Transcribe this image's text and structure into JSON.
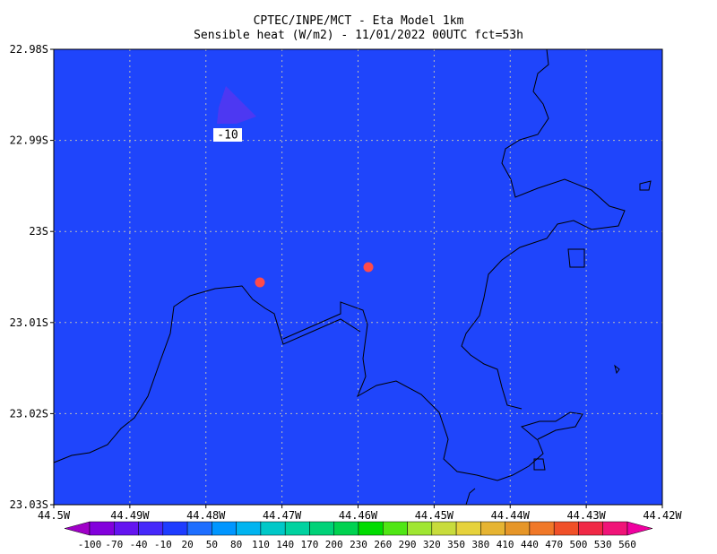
{
  "header": {
    "title": "CPTEC/INPE/MCT -  Eta Model 1km",
    "subtitle": "Sensible heat (W/m2) - 11/01/2022 00UTC fct=53h"
  },
  "map": {
    "lat_ticks": [
      "22.98S",
      "22.99S",
      "23S",
      "23.01S",
      "23.02S",
      "23.03S"
    ],
    "lon_ticks": [
      "44.5W",
      "44.49W",
      "44.48W",
      "44.47W",
      "44.46W",
      "44.45W",
      "44.44W",
      "44.43W",
      "44.42W"
    ],
    "contour_label": "-10"
  },
  "colorbar": {
    "labels": [
      -100,
      -70,
      -40,
      -10,
      20,
      50,
      80,
      110,
      140,
      170,
      200,
      230,
      260,
      290,
      320,
      350,
      380,
      410,
      440,
      470,
      500,
      530,
      560
    ],
    "colors": [
      "#a000c8",
      "#8200dc",
      "#6414f0",
      "#4628fa",
      "#1e3cff",
      "#1e6eff",
      "#0096ff",
      "#00b4f0",
      "#00c8c8",
      "#00d2a0",
      "#00d278",
      "#00d250",
      "#00dc00",
      "#50e614",
      "#a0e632",
      "#c8dc3c",
      "#e6d23c",
      "#e6b432",
      "#e69628",
      "#f07828",
      "#f05028",
      "#f02846",
      "#f01478",
      "#f000a0"
    ]
  }
}
